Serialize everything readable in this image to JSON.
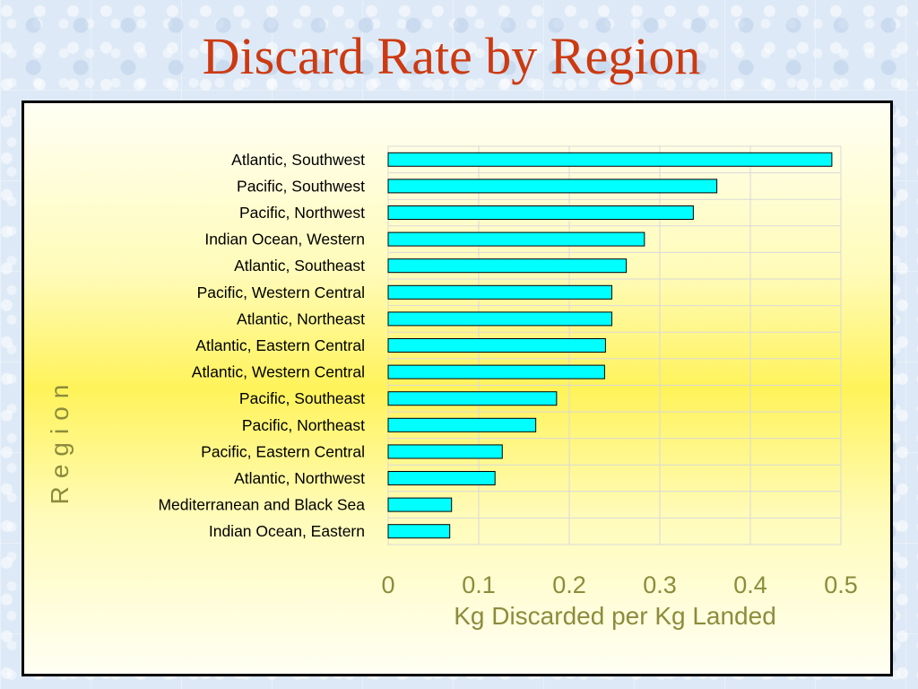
{
  "slide": {
    "title": "Discard Rate by Region"
  },
  "colors": {
    "bar_fill": "#00ffff",
    "bar_stroke": "#000000",
    "title": "#cc3a12",
    "axis_label": "#8c8c3c"
  },
  "chart_data": {
    "type": "bar",
    "orientation": "horizontal",
    "title": "",
    "xlabel": "Kg Discarded per Kg Landed",
    "ylabel": "Region",
    "xlim": [
      0,
      0.5
    ],
    "xticks": [
      "0",
      "0.1",
      "0.2",
      "0.3",
      "0.4",
      "0.5"
    ],
    "grid": true,
    "legend": false,
    "categories": [
      "Atlantic, Southwest",
      "Pacific, Southwest",
      "Pacific, Northwest",
      "Indian Ocean, Western",
      "Atlantic, Southeast",
      "Pacific, Western Central",
      "Atlantic, Northeast",
      "Atlantic, Eastern Central",
      "Atlantic, Western Central",
      "Pacific, Southeast",
      "Pacific, Northeast",
      "Pacific, Eastern Central",
      "Atlantic, Northwest",
      "Mediterranean and Black Sea",
      "Indian Ocean, Eastern"
    ],
    "values": [
      0.49,
      0.363,
      0.337,
      0.283,
      0.263,
      0.247,
      0.247,
      0.24,
      0.239,
      0.186,
      0.163,
      0.126,
      0.118,
      0.07,
      0.068
    ]
  }
}
